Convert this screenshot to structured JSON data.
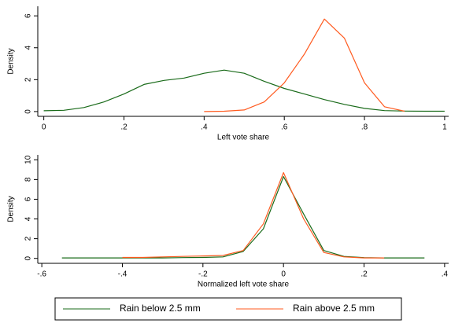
{
  "chart_data": [
    {
      "type": "line",
      "xlabel": "Left vote share",
      "ylabel": "Density",
      "x": [
        0,
        0.05,
        0.1,
        0.15,
        0.2,
        0.25,
        0.3,
        0.35,
        0.4,
        0.45,
        0.5,
        0.55,
        0.6,
        0.65,
        0.7,
        0.75,
        0.8,
        0.85,
        0.9,
        0.95,
        1
      ],
      "xlim": [
        -0.015,
        1.01
      ],
      "xticks": [
        0,
        {
          "value": 0.2,
          "label": ".2"
        },
        {
          "value": 0.4,
          "label": ".4"
        },
        {
          "value": 0.6,
          "label": ".6"
        },
        {
          "value": 0.8,
          "label": ".8"
        },
        1
      ],
      "ylim": [
        -0.3,
        6.6
      ],
      "yticks": [
        0,
        2,
        4,
        6
      ],
      "series": [
        {
          "name": "Rain below 2.5 mm",
          "color": "#1a6b1a",
          "values": [
            0.05,
            0.08,
            0.25,
            0.6,
            1.1,
            1.7,
            1.95,
            2.1,
            2.4,
            2.6,
            2.4,
            1.9,
            1.45,
            1.1,
            0.75,
            0.45,
            0.2,
            0.06,
            0.03,
            0.02,
            0.02
          ]
        },
        {
          "name": "Rain above 2.5 mm",
          "color": "#ff5a1f",
          "values": [
            null,
            null,
            null,
            null,
            null,
            null,
            null,
            null,
            0,
            0.02,
            0.1,
            0.6,
            1.8,
            3.6,
            5.8,
            4.6,
            1.8,
            0.3,
            0.02,
            null,
            null
          ]
        }
      ]
    },
    {
      "type": "line",
      "xlabel": "Normalized left vote share",
      "ylabel": "Density",
      "x": [
        -0.6,
        -0.55,
        -0.5,
        -0.45,
        -0.4,
        -0.35,
        -0.3,
        -0.25,
        -0.2,
        -0.15,
        -0.1,
        -0.05,
        0,
        0.05,
        0.1,
        0.15,
        0.2,
        0.25,
        0.3,
        0.35,
        0.4
      ],
      "xlim": [
        -0.61,
        0.41
      ],
      "xticks": [
        {
          "value": -0.6,
          "label": "-.6"
        },
        {
          "value": -0.4,
          "label": "-.4"
        },
        {
          "value": -0.2,
          "label": "-.2"
        },
        0,
        {
          "value": 0.2,
          "label": ".2"
        },
        {
          "value": 0.4,
          "label": ".4"
        }
      ],
      "ylim": [
        -0.5,
        10.5
      ],
      "yticks": [
        0,
        2,
        4,
        6,
        8,
        10
      ],
      "series": [
        {
          "color": "#1a6b1a",
          "values": [
            null,
            0.05,
            0.05,
            0.05,
            0.05,
            0.05,
            0.05,
            0.08,
            0.1,
            0.15,
            0.7,
            3.0,
            8.3,
            4.5,
            0.8,
            0.2,
            0.08,
            0.05,
            0.05,
            0.05,
            null
          ]
        },
        {
          "color": "#ff5a1f",
          "values": [
            null,
            null,
            null,
            null,
            0.1,
            0.1,
            0.15,
            0.2,
            0.25,
            0.3,
            0.8,
            3.5,
            8.7,
            4.0,
            0.6,
            0.15,
            0.05,
            0.05,
            null,
            null,
            null
          ]
        }
      ]
    }
  ]
}
